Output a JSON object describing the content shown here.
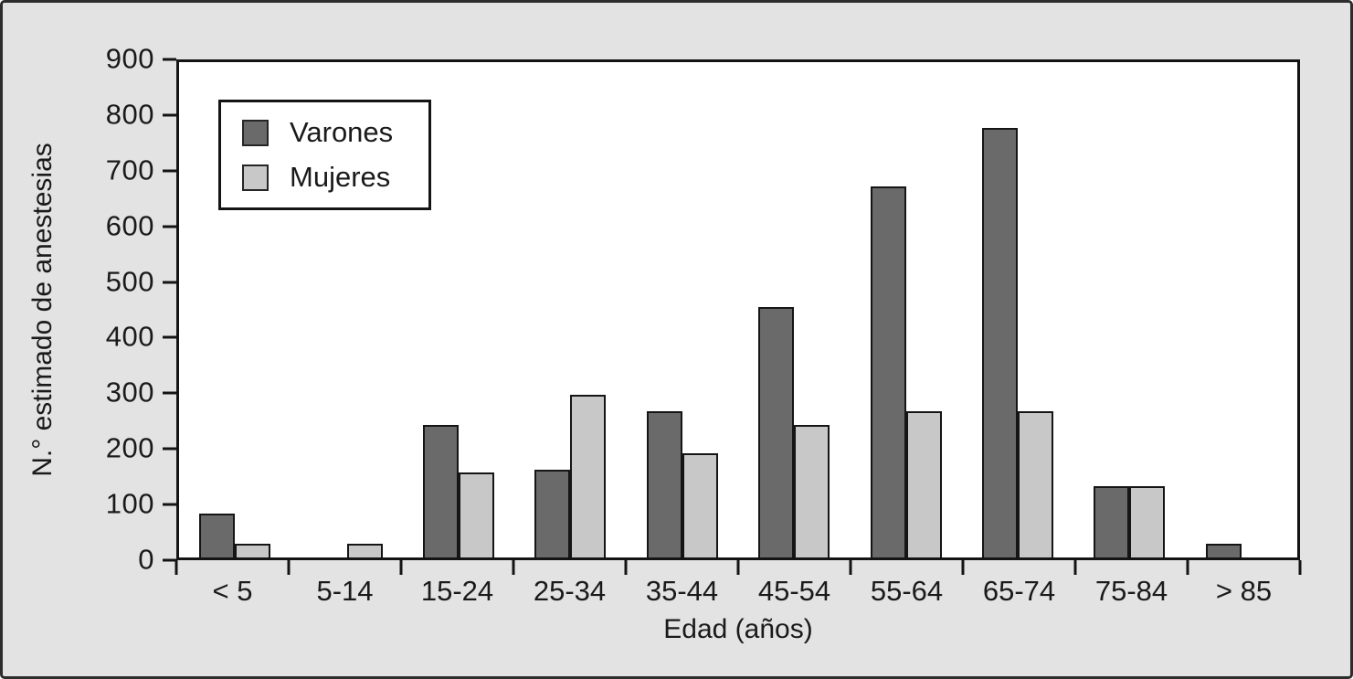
{
  "figure": {
    "background_color": "#e3e3e3",
    "plot_background_color": "#ffffff",
    "border_color": "#2d2d2d",
    "axis_line_color": "#141414"
  },
  "chart_data": {
    "type": "bar",
    "title": "",
    "xlabel": "Edad (años)",
    "ylabel": "N.° estimado de anestesias",
    "categories": [
      "< 5",
      "5-14",
      "15-24",
      "25-34",
      "35-44",
      "45-54",
      "55-64",
      "65-74",
      "75-84",
      "> 85"
    ],
    "series": [
      {
        "name": "Varones",
        "color": "#6a6a6a",
        "values": [
          80,
          0,
          240,
          160,
          265,
          455,
          675,
          780,
          130,
          25
        ]
      },
      {
        "name": "Mujeres",
        "color": "#c8c8c8",
        "values": [
          25,
          25,
          155,
          295,
          190,
          240,
          265,
          265,
          130,
          0
        ]
      }
    ],
    "ylim": [
      0,
      900
    ],
    "y_ticks": [
      0,
      100,
      200,
      300,
      400,
      500,
      600,
      700,
      800,
      900
    ],
    "grid": false,
    "legend_position": "upper-left"
  }
}
